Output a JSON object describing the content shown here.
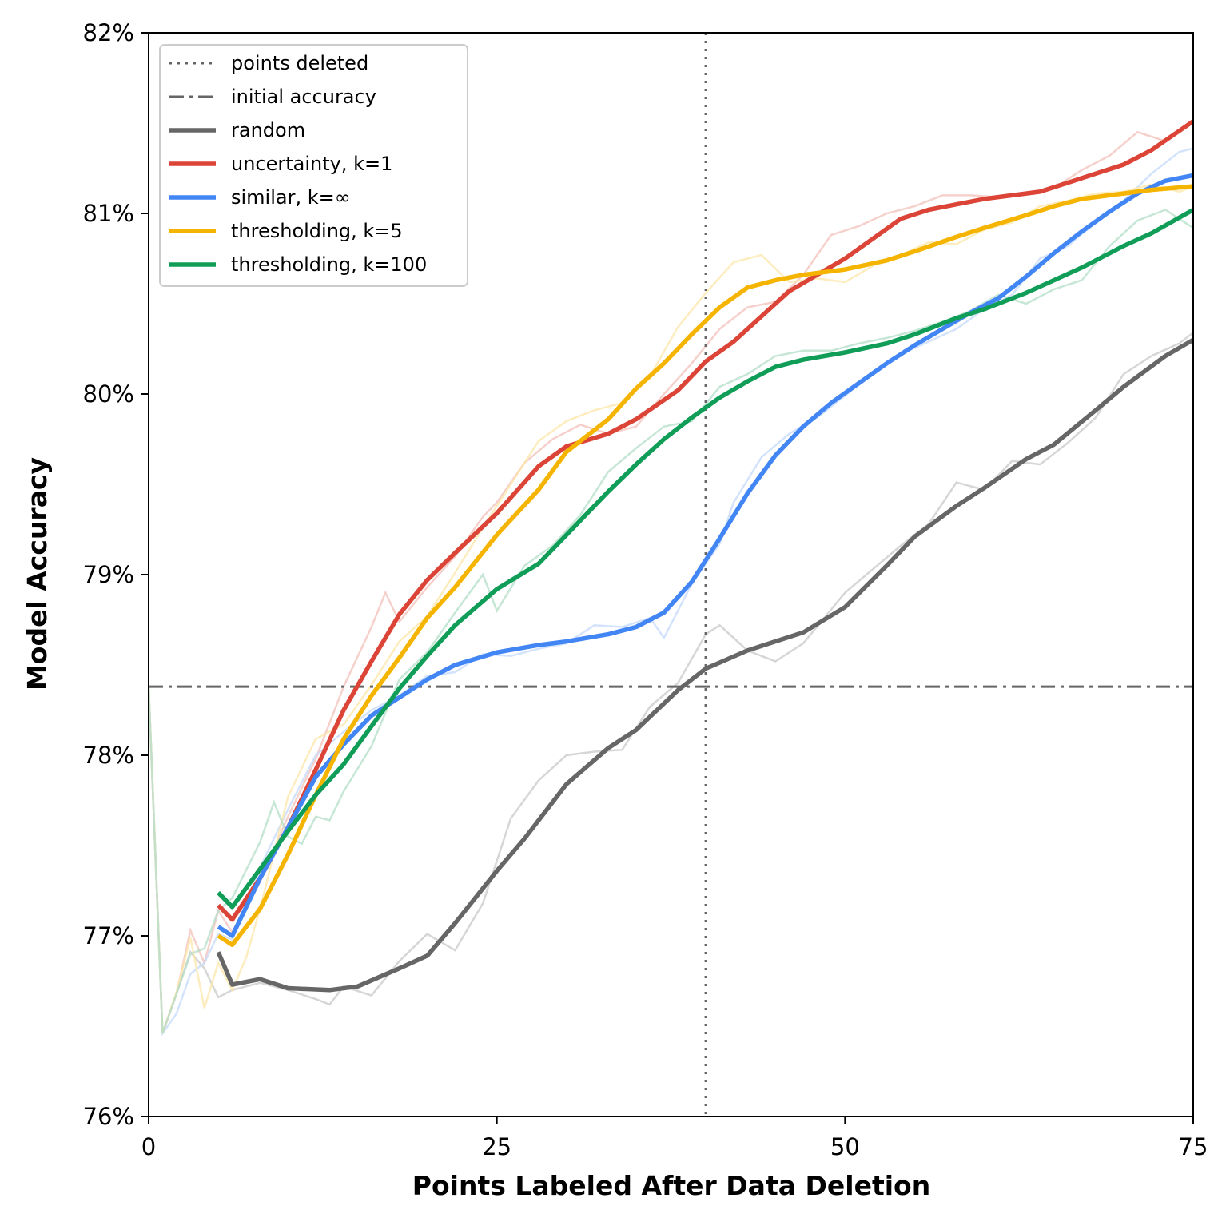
{
  "chart_data": {
    "type": "line",
    "xlabel": "Points Labeled After Data Deletion",
    "ylabel": "Model Accuracy",
    "xlim": [
      0,
      75
    ],
    "ylim": [
      76,
      82
    ],
    "x_ticks": [
      0,
      25,
      50,
      75
    ],
    "x_tick_labels": [
      "0",
      "25",
      "50",
      "75"
    ],
    "y_ticks": [
      76,
      77,
      78,
      79,
      80,
      81,
      82
    ],
    "y_tick_labels": [
      "76%",
      "77%",
      "78%",
      "79%",
      "80%",
      "81%",
      "82%"
    ],
    "grid": false,
    "legend_position": "top-left",
    "reference_lines": [
      {
        "name": "points deleted",
        "orientation": "vertical",
        "value": 40,
        "style": "dotted",
        "color": "#666666"
      },
      {
        "name": "initial accuracy",
        "orientation": "horizontal",
        "value": 78.38,
        "style": "dashdot",
        "color": "#666666"
      }
    ],
    "series": [
      {
        "name": "random",
        "color": "#666666",
        "x": [
          5,
          6,
          8,
          10,
          13,
          15,
          18,
          20,
          22,
          25,
          27,
          30,
          33,
          35,
          38,
          40,
          43,
          47,
          50,
          53,
          55,
          58,
          60,
          63,
          65,
          68,
          70,
          73,
          75
        ],
        "values": [
          76.91,
          76.73,
          76.76,
          76.71,
          76.7,
          76.72,
          76.82,
          76.89,
          77.07,
          77.36,
          77.54,
          77.84,
          78.04,
          78.14,
          78.36,
          78.48,
          78.58,
          78.68,
          78.82,
          79.05,
          79.21,
          79.38,
          79.48,
          79.64,
          79.72,
          79.91,
          80.04,
          80.21,
          80.3
        ]
      },
      {
        "name": "uncertainty, k=1",
        "color": "#DB4437",
        "x": [
          5,
          6,
          8,
          10,
          12,
          14,
          16,
          18,
          20,
          22,
          25,
          28,
          30,
          33,
          35,
          38,
          40,
          42,
          44,
          46,
          48,
          50,
          52,
          54,
          56,
          58,
          60,
          62,
          64,
          66,
          68,
          70,
          72,
          75
        ],
        "values": [
          77.17,
          77.09,
          77.32,
          77.6,
          77.92,
          78.25,
          78.52,
          78.78,
          78.97,
          79.12,
          79.34,
          79.6,
          79.71,
          79.78,
          79.86,
          80.02,
          80.18,
          80.29,
          80.43,
          80.57,
          80.66,
          80.75,
          80.86,
          80.97,
          81.02,
          81.05,
          81.08,
          81.1,
          81.12,
          81.17,
          81.22,
          81.27,
          81.35,
          81.51
        ]
      },
      {
        "name": "similar, k=∞",
        "color": "#4285F4",
        "x": [
          5,
          6,
          8,
          10,
          12,
          14,
          16,
          18,
          20,
          22,
          25,
          28,
          30,
          33,
          35,
          37,
          39,
          41,
          43,
          45,
          47,
          49,
          51,
          53,
          55,
          57,
          59,
          61,
          63,
          65,
          67,
          69,
          71,
          73,
          75
        ],
        "values": [
          77.05,
          77.0,
          77.32,
          77.6,
          77.88,
          78.06,
          78.22,
          78.32,
          78.42,
          78.5,
          78.57,
          78.61,
          78.63,
          78.67,
          78.71,
          78.79,
          78.96,
          79.2,
          79.45,
          79.66,
          79.82,
          79.95,
          80.06,
          80.17,
          80.27,
          80.36,
          80.45,
          80.53,
          80.65,
          80.78,
          80.9,
          81.01,
          81.11,
          81.18,
          81.21
        ]
      },
      {
        "name": "thresholding, k=5",
        "color": "#F4B400",
        "x": [
          5,
          6,
          8,
          10,
          12,
          14,
          16,
          18,
          20,
          22,
          25,
          28,
          30,
          33,
          35,
          37,
          39,
          41,
          43,
          45,
          47,
          50,
          53,
          55,
          58,
          60,
          63,
          65,
          67,
          70,
          72,
          75
        ],
        "values": [
          77.0,
          76.95,
          77.15,
          77.45,
          77.78,
          78.09,
          78.33,
          78.54,
          78.76,
          78.93,
          79.22,
          79.47,
          79.68,
          79.86,
          80.03,
          80.17,
          80.33,
          80.48,
          80.59,
          80.63,
          80.66,
          80.69,
          80.74,
          80.79,
          80.87,
          80.92,
          80.99,
          81.04,
          81.08,
          81.11,
          81.13,
          81.15
        ]
      },
      {
        "name": "thresholding, k=100",
        "color": "#0F9D58",
        "x": [
          5,
          6,
          8,
          10,
          12,
          14,
          16,
          18,
          20,
          22,
          25,
          28,
          30,
          33,
          35,
          37,
          39,
          41,
          43,
          45,
          47,
          50,
          53,
          55,
          58,
          60,
          63,
          65,
          67,
          70,
          72,
          75
        ],
        "values": [
          77.24,
          77.16,
          77.37,
          77.58,
          77.78,
          77.95,
          78.16,
          78.37,
          78.55,
          78.72,
          78.92,
          79.06,
          79.22,
          79.46,
          79.61,
          79.75,
          79.87,
          79.98,
          80.07,
          80.15,
          80.19,
          80.23,
          80.28,
          80.33,
          80.42,
          80.47,
          80.56,
          80.63,
          80.7,
          80.82,
          80.89,
          81.02
        ]
      }
    ],
    "faint_raw_series": [
      {
        "name": "random",
        "color": "#c8c8c8",
        "x": [
          0,
          1,
          2,
          3,
          4,
          5,
          6,
          8,
          10,
          12,
          13,
          14,
          16,
          18,
          20,
          22,
          24,
          26,
          28,
          30,
          32,
          34,
          36,
          38,
          40,
          41,
          43,
          45,
          47,
          50,
          52,
          54,
          56,
          58,
          60,
          62,
          64,
          66,
          68,
          70,
          72,
          74,
          75
        ],
        "values": [
          78.38,
          76.46,
          76.68,
          76.91,
          76.82,
          76.66,
          76.7,
          76.74,
          76.7,
          76.65,
          76.62,
          76.72,
          76.67,
          76.86,
          77.01,
          76.92,
          77.18,
          77.65,
          77.86,
          78.0,
          78.02,
          78.03,
          78.27,
          78.4,
          78.67,
          78.72,
          78.58,
          78.52,
          78.62,
          78.9,
          79.03,
          79.16,
          79.28,
          79.51,
          79.47,
          79.63,
          79.61,
          79.73,
          79.87,
          80.11,
          80.21,
          80.28,
          80.34
        ]
      },
      {
        "name": "uncertainty, k=1",
        "color": "#f3c0ba",
        "x": [
          0,
          1,
          2,
          3,
          4,
          5,
          6,
          8,
          10,
          12,
          14,
          16,
          17,
          18,
          20,
          22,
          24,
          25,
          27,
          29,
          31,
          33,
          35,
          37,
          39,
          41,
          43,
          45,
          47,
          49,
          51,
          53,
          55,
          57,
          59,
          61,
          63,
          65,
          67,
          69,
          71,
          73,
          75
        ],
        "values": [
          78.38,
          76.46,
          76.68,
          77.03,
          76.85,
          77.14,
          77.02,
          77.3,
          77.66,
          77.98,
          78.38,
          78.71,
          78.9,
          78.74,
          78.93,
          79.1,
          79.32,
          79.4,
          79.62,
          79.75,
          79.83,
          79.78,
          79.82,
          80.0,
          80.17,
          80.36,
          80.48,
          80.51,
          80.66,
          80.88,
          80.93,
          81.0,
          81.04,
          81.1,
          81.1,
          81.09,
          81.11,
          81.14,
          81.24,
          81.32,
          81.45,
          81.4,
          81.52
        ]
      },
      {
        "name": "similar, k=∞",
        "color": "#c5d9fb",
        "x": [
          0,
          1,
          2,
          3,
          4,
          5,
          6,
          8,
          10,
          12,
          14,
          16,
          18,
          20,
          22,
          24,
          26,
          28,
          30,
          32,
          34,
          36,
          37,
          38,
          39,
          41,
          42,
          44,
          46,
          48,
          50,
          52,
          54,
          56,
          58,
          60,
          62,
          64,
          66,
          68,
          70,
          72,
          74,
          75
        ],
        "values": [
          78.38,
          76.46,
          76.57,
          76.79,
          76.85,
          77.01,
          76.98,
          77.38,
          77.7,
          78.0,
          78.13,
          78.25,
          78.33,
          78.44,
          78.46,
          78.56,
          78.55,
          78.59,
          78.62,
          78.72,
          78.71,
          78.76,
          78.65,
          78.8,
          78.95,
          79.17,
          79.4,
          79.65,
          79.78,
          79.87,
          79.99,
          80.12,
          80.22,
          80.29,
          80.36,
          80.47,
          80.55,
          80.75,
          80.82,
          80.95,
          81.07,
          81.22,
          81.34,
          81.36
        ]
      },
      {
        "name": "thresholding, k=5",
        "color": "#fce7a8",
        "x": [
          0,
          1,
          2,
          3,
          4,
          5,
          6,
          7,
          8,
          10,
          12,
          14,
          16,
          18,
          20,
          22,
          24,
          26,
          28,
          30,
          32,
          34,
          36,
          38,
          40,
          42,
          44,
          46,
          48,
          50,
          52,
          54,
          56,
          58,
          60,
          62,
          64,
          66,
          68,
          70,
          72,
          74,
          75
        ],
        "values": [
          78.38,
          76.46,
          76.69,
          76.99,
          76.6,
          76.85,
          76.7,
          76.88,
          77.15,
          77.77,
          78.09,
          78.17,
          78.39,
          78.63,
          78.77,
          79.01,
          79.26,
          79.5,
          79.74,
          79.85,
          79.91,
          79.95,
          80.1,
          80.37,
          80.56,
          80.73,
          80.77,
          80.62,
          80.64,
          80.62,
          80.71,
          80.77,
          80.84,
          80.83,
          80.91,
          80.95,
          81.04,
          81.07,
          81.11,
          81.12,
          81.16,
          81.12,
          81.15
        ]
      },
      {
        "name": "thresholding, k=100",
        "color": "#b3dec8",
        "x": [
          0,
          1,
          2,
          3,
          4,
          5,
          6,
          8,
          9,
          10,
          11,
          12,
          13,
          14,
          16,
          18,
          20,
          22,
          24,
          25,
          27,
          29,
          31,
          33,
          35,
          37,
          39,
          41,
          43,
          45,
          47,
          49,
          51,
          53,
          55,
          57,
          59,
          61,
          63,
          65,
          67,
          69,
          71,
          73,
          75
        ],
        "values": [
          78.38,
          76.46,
          76.68,
          76.9,
          76.93,
          77.14,
          77.21,
          77.52,
          77.74,
          77.55,
          77.51,
          77.66,
          77.64,
          77.8,
          78.05,
          78.42,
          78.57,
          78.79,
          79.0,
          78.8,
          79.05,
          79.16,
          79.33,
          79.57,
          79.7,
          79.82,
          79.85,
          80.04,
          80.11,
          80.21,
          80.24,
          80.24,
          80.28,
          80.31,
          80.35,
          80.4,
          80.46,
          80.55,
          80.5,
          80.58,
          80.63,
          80.82,
          80.96,
          81.02,
          80.92
        ]
      }
    ]
  }
}
